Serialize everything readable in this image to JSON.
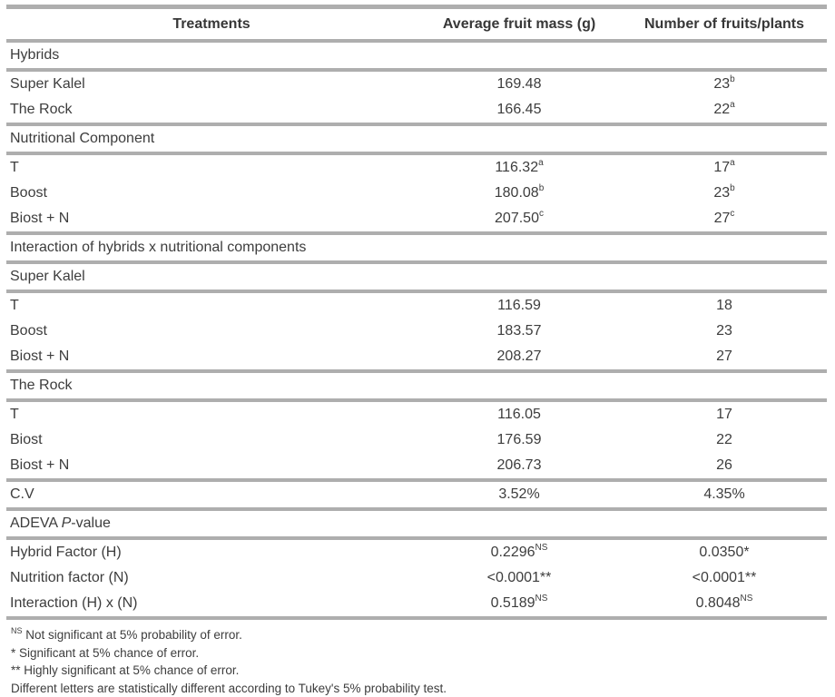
{
  "table": {
    "columns": [
      "Treatments",
      "Average fruit mass (g)",
      "Number of fruits/plants"
    ],
    "rows": [
      {
        "type": "section",
        "label": "Hybrids",
        "rule_below": true
      },
      {
        "type": "data",
        "label": "Super Kalel",
        "mass": "169.48",
        "mass_sup": "",
        "fruits": "23",
        "fruits_sup": "b",
        "rule_below": false
      },
      {
        "type": "data",
        "label": "The Rock",
        "mass": "166.45",
        "mass_sup": "",
        "fruits": "22",
        "fruits_sup": "a",
        "rule_below": true
      },
      {
        "type": "section",
        "label": "Nutritional Component",
        "rule_below": true
      },
      {
        "type": "data",
        "label": "T",
        "mass": "116.32",
        "mass_sup": "a",
        "fruits": "17",
        "fruits_sup": "a",
        "rule_below": false
      },
      {
        "type": "data",
        "label": "Boost",
        "mass": "180.08",
        "mass_sup": "b",
        "fruits": "23",
        "fruits_sup": "b",
        "rule_below": false
      },
      {
        "type": "data",
        "label": "Biost + N",
        "mass": "207.50",
        "mass_sup": "c",
        "fruits": "27",
        "fruits_sup": "c",
        "rule_below": true
      },
      {
        "type": "section",
        "label": "Interaction of hybrids x nutritional components",
        "rule_below": true
      },
      {
        "type": "section",
        "label": "Super Kalel",
        "rule_below": true
      },
      {
        "type": "data",
        "label": "T",
        "mass": "116.59",
        "mass_sup": "",
        "fruits": "18",
        "fruits_sup": "",
        "rule_below": false
      },
      {
        "type": "data",
        "label": "Boost",
        "mass": "183.57",
        "mass_sup": "",
        "fruits": "23",
        "fruits_sup": "",
        "rule_below": false
      },
      {
        "type": "data",
        "label": "Biost + N",
        "mass": "208.27",
        "mass_sup": "",
        "fruits": "27",
        "fruits_sup": "",
        "rule_below": true
      },
      {
        "type": "section",
        "label": "The Rock",
        "rule_below": true
      },
      {
        "type": "data",
        "label": "T",
        "mass": "116.05",
        "mass_sup": "",
        "fruits": "17",
        "fruits_sup": "",
        "rule_below": false
      },
      {
        "type": "data",
        "label": "Biost",
        "mass": "176.59",
        "mass_sup": "",
        "fruits": "22",
        "fruits_sup": "",
        "rule_below": false
      },
      {
        "type": "data",
        "label": "Biost + N",
        "mass": "206.73",
        "mass_sup": "",
        "fruits": "26",
        "fruits_sup": "",
        "rule_below": true
      },
      {
        "type": "data",
        "label": "C.V",
        "mass": "3.52%",
        "mass_sup": "",
        "fruits": "4.35%",
        "fruits_sup": "",
        "rule_below": true
      },
      {
        "type": "section",
        "label": "ADEVA P-value",
        "label_prefix": "ADEVA ",
        "label_italic": "P",
        "label_suffix": "-value",
        "rule_below": true
      },
      {
        "type": "data",
        "label": "Hybrid Factor (H)",
        "mass": "0.2296",
        "mass_sup": "NS",
        "fruits": "0.0350*",
        "fruits_sup": "",
        "rule_below": false
      },
      {
        "type": "data",
        "label": "Nutrition factor (N)",
        "mass": "<0.0001**",
        "mass_sup": "",
        "fruits": "<0.0001**",
        "fruits_sup": "",
        "rule_below": false
      },
      {
        "type": "data",
        "label": "Interaction (H) x (N)",
        "mass": "0.5189",
        "mass_sup": "NS",
        "fruits": "0.8048",
        "fruits_sup": "NS",
        "rule_below": true
      }
    ],
    "footnotes": [
      {
        "sup": "NS",
        "text": " Not significant at 5% probability of error."
      },
      {
        "sup": "",
        "text": "* Significant at 5% chance of error."
      },
      {
        "sup": "",
        "text": "** Highly significant at 5% chance of error."
      },
      {
        "sup": "",
        "text": "Different letters are statistically different according to Tukey's 5% probability test."
      }
    ],
    "colors": {
      "rule": "#aeaeae",
      "text": "#3d3d3d"
    }
  }
}
